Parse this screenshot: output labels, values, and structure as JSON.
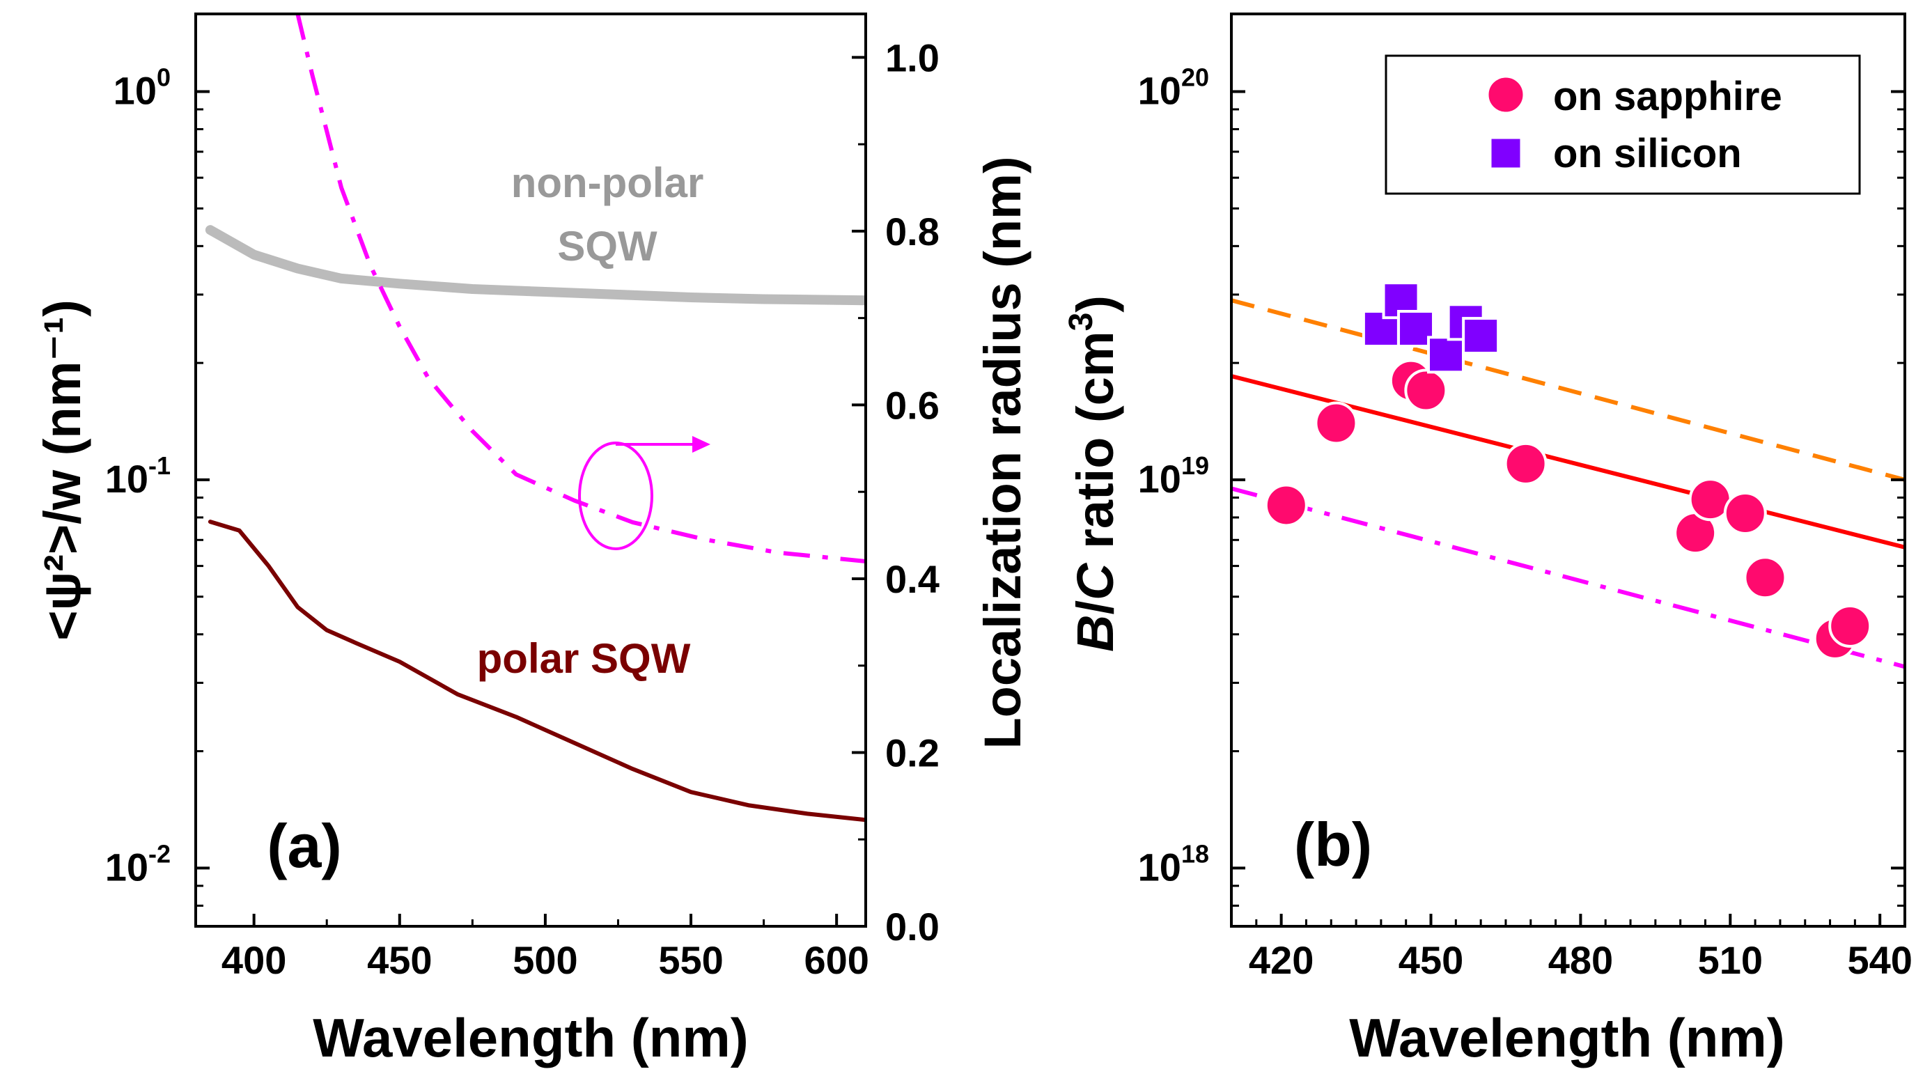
{
  "colors": {
    "axis": "#000000",
    "gray": "#bbbbbb",
    "gray_text": "#999999",
    "magenta": "#ff00ff",
    "darkred": "#7a0000",
    "pink": "#ff0a6e",
    "purple": "#8000ff",
    "red": "#ff0000",
    "orange": "#ff8000"
  },
  "chart_data": [
    {
      "panel": "(a)",
      "type": "line",
      "xlabel": "Wavelength (nm)",
      "ylabel_left": "<ψ²>/w (nm⁻¹)",
      "ylabel_right": "Localization radius (nm)",
      "xlim": [
        380,
        610
      ],
      "ylim_left_log10": [
        -2.15,
        0.2
      ],
      "ylim_right": [
        0.0,
        1.05
      ],
      "x_ticks": [
        400,
        450,
        500,
        550,
        600
      ],
      "y_left_ticks": [
        {
          "base": "10",
          "exp": "0",
          "value": 1
        },
        {
          "base": "10",
          "exp": "-1",
          "value": 0.1
        },
        {
          "base": "10",
          "exp": "-2",
          "value": 0.01
        }
      ],
      "y_right_ticks": [
        "0.0",
        "0.2",
        "0.4",
        "0.6",
        "0.8",
        "1.0"
      ],
      "series": [
        {
          "name": "non-polar SQW",
          "axis": "left",
          "color": "#bbbbbb",
          "style": "solid",
          "x": [
            385,
            400,
            415,
            430,
            450,
            475,
            500,
            525,
            550,
            575,
            610
          ],
          "y": [
            0.44,
            0.38,
            0.35,
            0.33,
            0.32,
            0.31,
            0.305,
            0.3,
            0.295,
            0.292,
            0.29
          ]
        },
        {
          "name": "polar SQW",
          "axis": "left",
          "color": "#7a0000",
          "style": "solid",
          "x": [
            385,
            395,
            405,
            415,
            425,
            435,
            450,
            470,
            490,
            510,
            530,
            550,
            570,
            590,
            610
          ],
          "y": [
            0.078,
            0.074,
            0.06,
            0.047,
            0.041,
            0.038,
            0.034,
            0.028,
            0.0245,
            0.021,
            0.018,
            0.0157,
            0.0145,
            0.0138,
            0.0133
          ]
        },
        {
          "name": "Localization radius",
          "axis": "right",
          "color": "#ff00ff",
          "style": "dashdot",
          "x": [
            415,
            420,
            430,
            440,
            450,
            460,
            475,
            490,
            510,
            530,
            555,
            580,
            610
          ],
          "y": [
            1.05,
            0.98,
            0.85,
            0.76,
            0.69,
            0.63,
            0.57,
            0.52,
            0.49,
            0.465,
            0.445,
            0.43,
            0.42
          ]
        }
      ],
      "annotations": {
        "nonpolar_line1": "non-polar",
        "nonpolar_line2": "SQW",
        "polar": "polar SQW",
        "panel_label": "(a)"
      }
    },
    {
      "panel": "(b)",
      "type": "scatter",
      "xlabel": "Wavelength (nm)",
      "ylabel_parts": [
        "B",
        "/",
        "C",
        " ratio (cm",
        "3",
        ")"
      ],
      "xlim": [
        410,
        545
      ],
      "ylim_log10": [
        17.85,
        20.2
      ],
      "x_ticks": [
        420,
        450,
        480,
        510,
        540
      ],
      "y_ticks": [
        {
          "base": "10",
          "exp": "20",
          "value": 1e+20
        },
        {
          "base": "10",
          "exp": "19",
          "value": 1e+19
        },
        {
          "base": "10",
          "exp": "18",
          "value": 1e+18
        }
      ],
      "legend": [
        "on sapphire",
        "on silicon"
      ],
      "series": [
        {
          "name": "on sapphire",
          "marker": "circle",
          "color": "#ff0a6e",
          "x": [
            421,
            431,
            446,
            449,
            469,
            503,
            506,
            513,
            517,
            531,
            534
          ],
          "y": [
            8.6e+18,
            1.4e+19,
            1.8e+19,
            1.7e+19,
            1.1e+19,
            7.3e+18,
            8.9e+18,
            8.2e+18,
            5.6e+18,
            3.9e+18,
            4.2e+18
          ]
        },
        {
          "name": "on silicon",
          "marker": "square",
          "color": "#8000ff",
          "x": [
            440,
            444,
            447,
            453,
            457,
            460
          ],
          "y": [
            2.45e+19,
            2.9e+19,
            2.45e+19,
            2.1e+19,
            2.55e+19,
            2.35e+19
          ]
        },
        {
          "name": "fit (red)",
          "style": "solid",
          "color": "#ff0000",
          "x": [
            410,
            545
          ],
          "y": [
            1.85e+19,
            6.7e+18
          ]
        },
        {
          "name": "fit (orange)",
          "style": "dashed",
          "color": "#ff8000",
          "x": [
            410,
            545
          ],
          "y": [
            2.9e+19,
            1e+19
          ]
        },
        {
          "name": "fit (magenta)",
          "style": "dashdot",
          "color": "#ff00ff",
          "x": [
            410,
            545
          ],
          "y": [
            9.5e+18,
            3.3e+18
          ]
        }
      ],
      "annotations": {
        "panel_label": "(b)"
      }
    }
  ]
}
